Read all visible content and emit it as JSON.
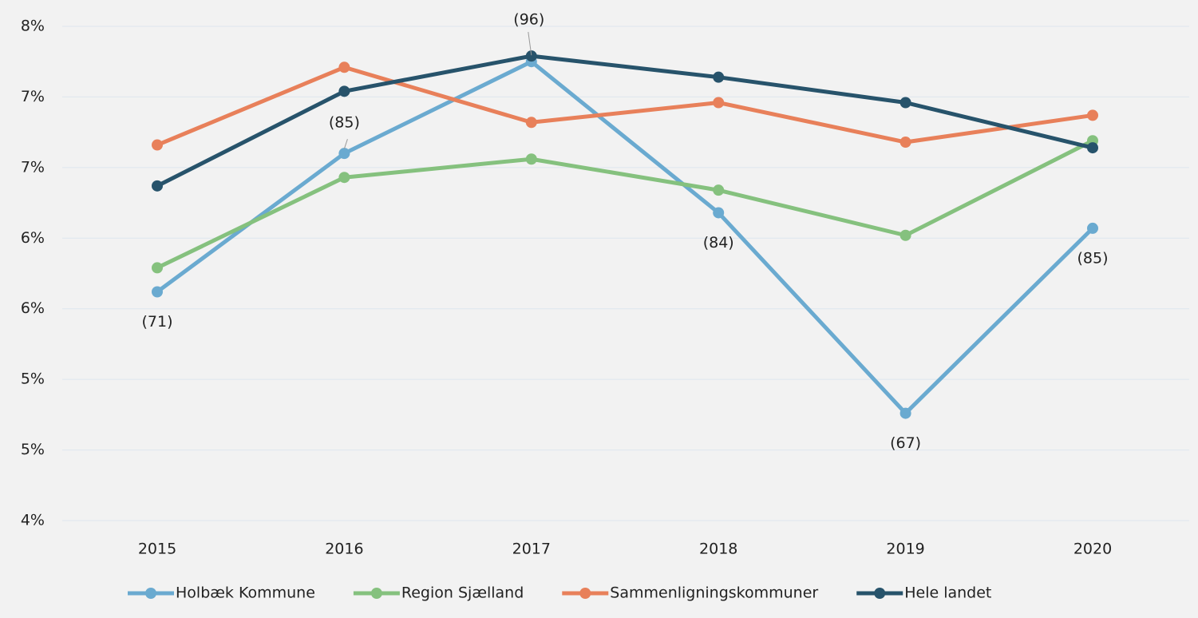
{
  "chart_data": {
    "type": "line",
    "categories": [
      "2015",
      "2016",
      "2017",
      "2018",
      "2019",
      "2020"
    ],
    "series": [
      {
        "name": "Holbæk Kommune",
        "color": "#6aaad0",
        "values": [
          5.62,
          6.6,
          7.25,
          6.18,
          4.76,
          6.07
        ]
      },
      {
        "name": "Region Sjælland",
        "color": "#85c17e",
        "values": [
          5.79,
          6.43,
          6.56,
          6.34,
          6.02,
          6.69
        ]
      },
      {
        "name": "Sammenligningskommuner",
        "color": "#e8805a",
        "values": [
          6.66,
          7.21,
          6.82,
          6.96,
          6.68,
          6.87
        ]
      },
      {
        "name": "Hele landet",
        "color": "#27536b",
        "values": [
          6.37,
          7.04,
          7.29,
          7.14,
          6.96,
          6.64
        ]
      }
    ],
    "annotations": [
      "(71)",
      "(85)",
      "(96)",
      "(84)",
      "(67)",
      "(85)"
    ],
    "ylim": [
      4,
      7.5
    ],
    "yticks": [
      {
        "value": 4,
        "label": "4%"
      },
      {
        "value": 4.5,
        "label": "5%"
      },
      {
        "value": 5,
        "label": "5%"
      },
      {
        "value": 5.5,
        "label": "6%"
      },
      {
        "value": 6,
        "label": "6%"
      },
      {
        "value": 6.5,
        "label": "7%"
      },
      {
        "value": 7,
        "label": "7%"
      },
      {
        "value": 7.5,
        "label": "8%"
      }
    ],
    "grid": true,
    "legend": "bottom"
  }
}
